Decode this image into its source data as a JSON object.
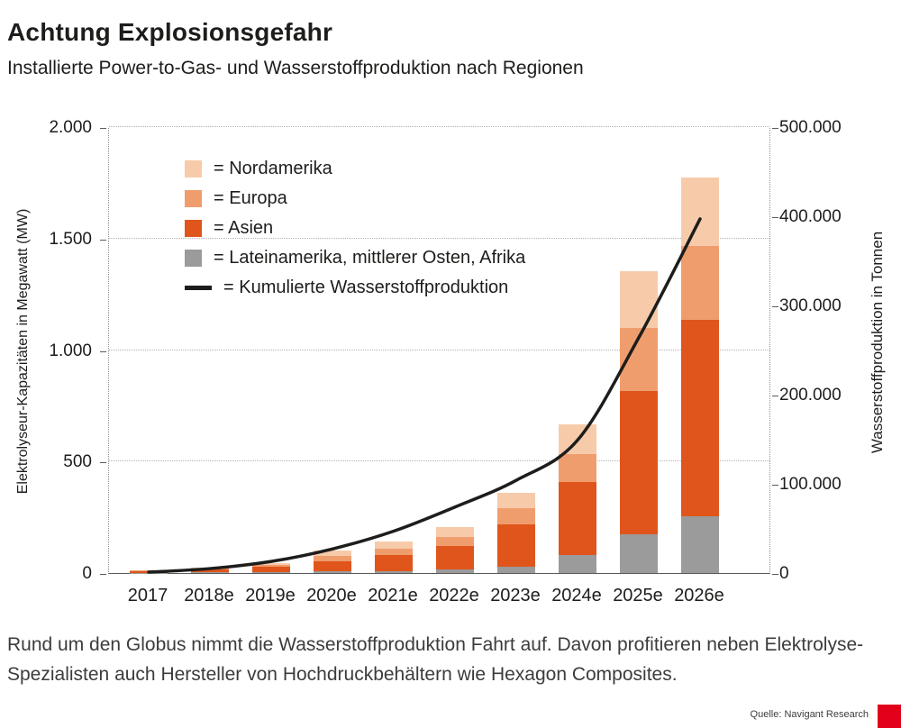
{
  "header": {
    "title": "Achtung Explosionsgefahr",
    "subtitle": "Installierte Power-to-Gas- und Wasserstoffproduktion nach Regionen"
  },
  "chart_data": {
    "type": "bar",
    "stacked": true,
    "categories": [
      "2017",
      "2018e",
      "2019e",
      "2020e",
      "2021e",
      "2022e",
      "2023e",
      "2024e",
      "2025e",
      "2026e"
    ],
    "series": [
      {
        "name": "Lateinamerika, mittlerer Osten, Afrika",
        "color": "#9b9b9b",
        "values": [
          1,
          3,
          5,
          7,
          10,
          15,
          30,
          80,
          175,
          255
        ]
      },
      {
        "name": "Asien",
        "color": "#e0551c",
        "values": [
          8,
          14,
          24,
          45,
          70,
          105,
          190,
          330,
          640,
          880
        ]
      },
      {
        "name": "Europa",
        "color": "#f09d6e",
        "values": [
          2,
          4,
          8,
          25,
          28,
          42,
          70,
          125,
          285,
          330
        ]
      },
      {
        "name": "Nordamerika",
        "color": "#f7cbaa",
        "values": [
          1,
          3,
          8,
          24,
          32,
          43,
          70,
          130,
          255,
          310
        ]
      }
    ],
    "line_series": {
      "name": "Kumulierte Wasserstoffproduktion",
      "color": "#1d1d1b",
      "axis": "right",
      "values": [
        2000,
        6000,
        14000,
        28000,
        48000,
        75000,
        105000,
        150000,
        265000,
        398000
      ]
    },
    "left_axis": {
      "label": "Elektrolyseur-Kapazitäten in Megawatt (MW)",
      "max": 2000,
      "ticks": [
        {
          "v": 0,
          "t": "0"
        },
        {
          "v": 500,
          "t": "500"
        },
        {
          "v": 1000,
          "t": "1.000"
        },
        {
          "v": 1500,
          "t": "1.500"
        },
        {
          "v": 2000,
          "t": "2.000"
        }
      ]
    },
    "right_axis": {
      "label": "Wasserstoffproduktion in Tonnen",
      "max": 500000,
      "ticks": [
        {
          "v": 0,
          "t": "0"
        },
        {
          "v": 100000,
          "t": "100.000"
        },
        {
          "v": 200000,
          "t": "200.000"
        },
        {
          "v": 300000,
          "t": "300.000"
        },
        {
          "v": 400000,
          "t": "400.000"
        },
        {
          "v": 500000,
          "t": "500.000"
        }
      ]
    },
    "legend_position": "top-left-inside",
    "grid": "dotted-horizontal"
  },
  "legend": {
    "items": [
      {
        "type": "box",
        "color": "#f7cbaa",
        "label": "= Nordamerika"
      },
      {
        "type": "box",
        "color": "#f09d6e",
        "label": "= Europa"
      },
      {
        "type": "box",
        "color": "#e0551c",
        "label": "= Asien"
      },
      {
        "type": "box",
        "color": "#9b9b9b",
        "label": "= Lateinamerika, mittlerer Osten, Afrika"
      },
      {
        "type": "line",
        "color": "#1d1d1b",
        "label": "= Kumulierte Wasserstoffproduktion"
      }
    ]
  },
  "caption": {
    "text": "Rund um den Globus nimmt die Wasserstoffproduktion Fahrt auf. Davon profitieren neben Elektrolyse-Spezialisten auch Hersteller von Hochdruckbehältern wie Hexagon Composites."
  },
  "source": {
    "text": "Quelle: Navigant Research"
  },
  "colors": {
    "accent_red": "#e2001a",
    "text": "#1d1d1b",
    "grid": "#b3b3b3"
  }
}
